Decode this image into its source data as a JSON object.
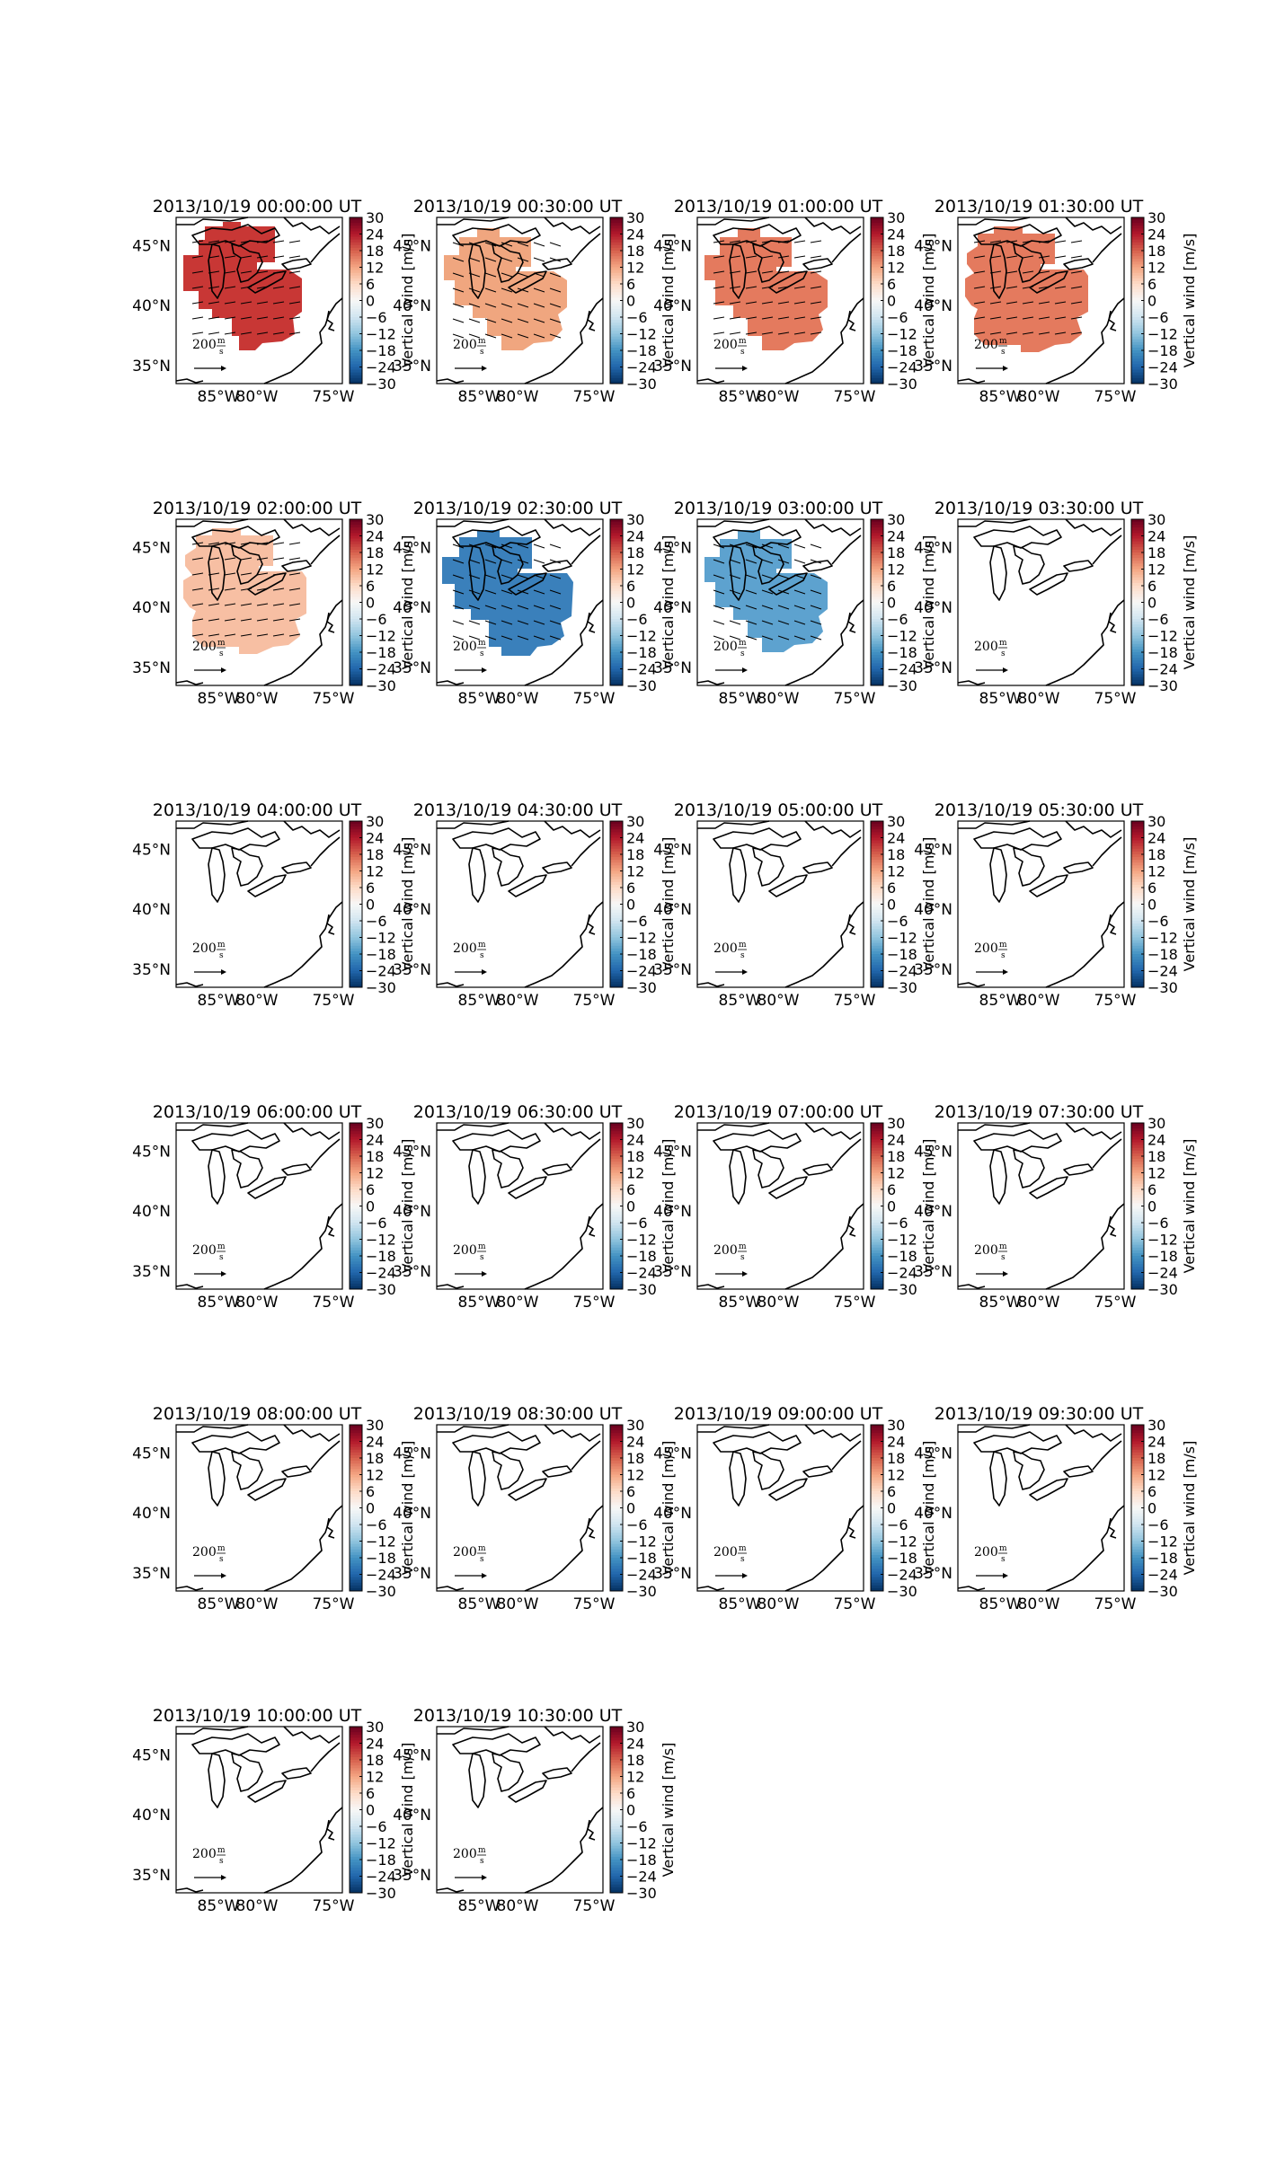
{
  "figure": {
    "label_units": "m/s",
    "colorbar": {
      "label": "Vertical wind [m/s]",
      "ticks": [
        "30",
        "24",
        "18",
        "12",
        "6",
        "0",
        "−6",
        "−12",
        "−18",
        "−24",
        "−30"
      ],
      "range": [
        -30,
        30
      ]
    },
    "map": {
      "lat_ticks": [
        "45°N",
        "40°N",
        "35°N"
      ],
      "lon_ticks": [
        "85°W",
        "80°W",
        "75°W"
      ],
      "quiver_key": {
        "value": "200",
        "units_num": "m",
        "units_den": "s"
      }
    },
    "panels": [
      {
        "title": "2013/10/19 00:00:00 UT",
        "vertical_wind": 22,
        "fill": "#c83735",
        "has_data": true,
        "shape": "a"
      },
      {
        "title": "2013/10/19 00:30:00 UT",
        "vertical_wind": 9,
        "fill": "#f0a67f",
        "has_data": true,
        "shape": "b"
      },
      {
        "title": "2013/10/19 01:00:00 UT",
        "vertical_wind": 13,
        "fill": "#e47a5e",
        "has_data": true,
        "shape": "b"
      },
      {
        "title": "2013/10/19 01:30:00 UT",
        "vertical_wind": 13,
        "fill": "#e47a5e",
        "has_data": true,
        "shape": "c"
      },
      {
        "title": "2013/10/19 02:00:00 UT",
        "vertical_wind": 5,
        "fill": "#f7bfa3",
        "has_data": true,
        "shape": "c"
      },
      {
        "title": "2013/10/19 02:30:00 UT",
        "vertical_wind": -15,
        "fill": "#3a80bb",
        "has_data": true,
        "shape": "d"
      },
      {
        "title": "2013/10/19 03:00:00 UT",
        "vertical_wind": -12,
        "fill": "#5da2cf",
        "has_data": true,
        "shape": "b"
      },
      {
        "title": "2013/10/19 03:30:00 UT",
        "has_data": false
      },
      {
        "title": "2013/10/19 04:00:00 UT",
        "has_data": false
      },
      {
        "title": "2013/10/19 04:30:00 UT",
        "has_data": false
      },
      {
        "title": "2013/10/19 05:00:00 UT",
        "has_data": false
      },
      {
        "title": "2013/10/19 05:30:00 UT",
        "has_data": false
      },
      {
        "title": "2013/10/19 06:00:00 UT",
        "has_data": false
      },
      {
        "title": "2013/10/19 06:30:00 UT",
        "has_data": false
      },
      {
        "title": "2013/10/19 07:00:00 UT",
        "has_data": false
      },
      {
        "title": "2013/10/19 07:30:00 UT",
        "has_data": false
      },
      {
        "title": "2013/10/19 08:00:00 UT",
        "has_data": false
      },
      {
        "title": "2013/10/19 08:30:00 UT",
        "has_data": false
      },
      {
        "title": "2013/10/19 09:00:00 UT",
        "has_data": false
      },
      {
        "title": "2013/10/19 09:30:00 UT",
        "has_data": false
      },
      {
        "title": "2013/10/19 10:00:00 UT",
        "has_data": false
      },
      {
        "title": "2013/10/19 10:30:00 UT",
        "has_data": false
      }
    ]
  }
}
